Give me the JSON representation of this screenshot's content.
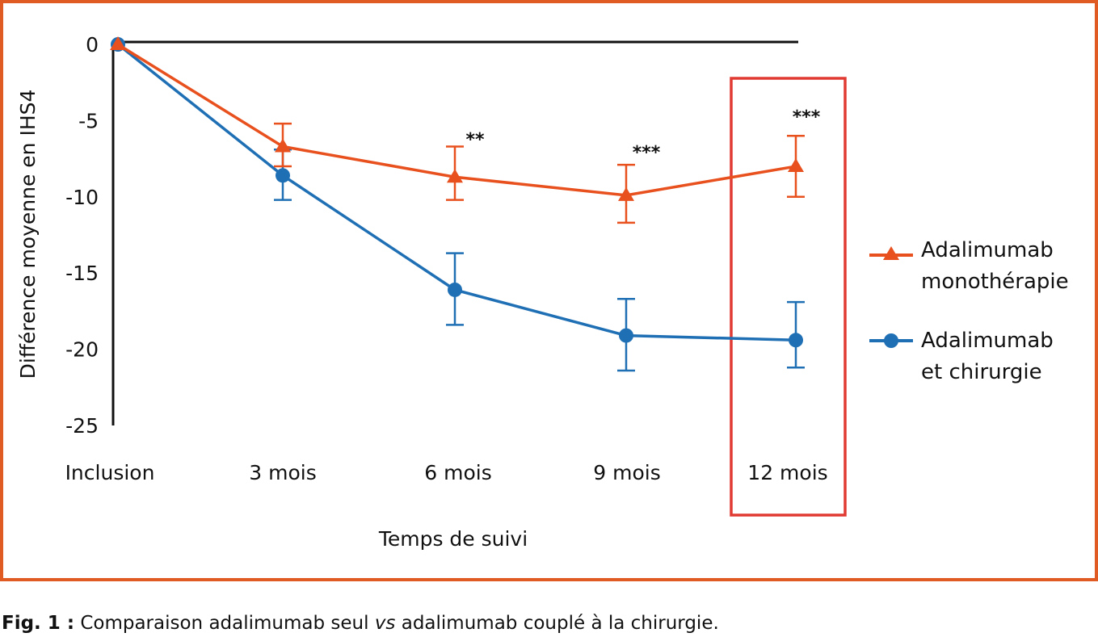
{
  "chart_data": {
    "type": "line",
    "categories": [
      "Inclusion",
      "3 mois",
      "6 mois",
      "9 mois",
      "12 mois"
    ],
    "xlabel": "Temps de suivi",
    "ylabel": "Différence moyenne en IHS4",
    "ylim": [
      -25,
      0
    ],
    "yticks": [
      0,
      -5,
      -10,
      -15,
      -20,
      -25
    ],
    "grid": false,
    "legend_position": "right",
    "highlighted_category": "12 mois",
    "series": [
      {
        "name": "Adalimumab monothérapie",
        "legend_lines": [
          "Adalimumab",
          "monothérapie"
        ],
        "marker": "triangle",
        "color": "#e8501e",
        "values": [
          0,
          -6.7,
          -8.7,
          -9.9,
          -8.0
        ],
        "err_low": [
          null,
          -8.0,
          -10.2,
          -11.7,
          -10.0
        ],
        "err_high": [
          null,
          -5.2,
          -6.7,
          -7.9,
          -6.0
        ]
      },
      {
        "name": "Adalimumab et chirurgie",
        "legend_lines": [
          "Adalimumab",
          "et chirurgie"
        ],
        "marker": "circle",
        "color": "#1f6fb5",
        "values": [
          0,
          -8.6,
          -16.1,
          -19.1,
          -19.4
        ],
        "err_low": [
          null,
          -10.2,
          -18.4,
          -21.4,
          -21.2
        ],
        "err_high": [
          null,
          -6.9,
          -13.7,
          -16.7,
          -16.9
        ]
      }
    ],
    "annotations": [
      {
        "category": "6 mois",
        "text": "**"
      },
      {
        "category": "9 mois",
        "text": "***"
      },
      {
        "category": "12 mois",
        "text": "***"
      }
    ]
  },
  "colors": {
    "frame": "#e05a24",
    "highlight_box": "#e03a32",
    "axis": "#111111"
  },
  "caption": {
    "label": "Fig. 1 :",
    "text_before": " Comparaison adalimumab seul ",
    "emphasis": "vs",
    "text_after": " adalimumab couplé à la chirurgie."
  }
}
